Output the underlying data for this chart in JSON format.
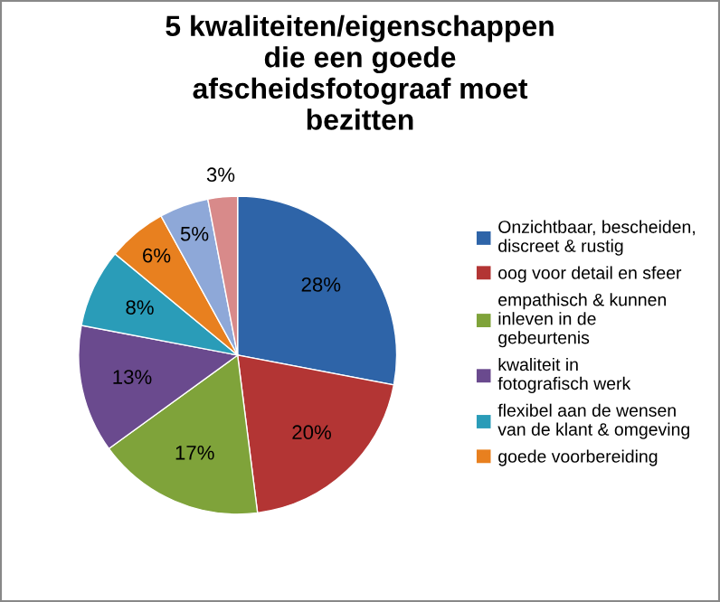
{
  "chart_data": {
    "type": "pie",
    "title": "5 kwaliteiten/eigenschappen die een goede afscheidsfotograaf moet bezitten",
    "categories": [
      "Onzichtbaar, bescheiden, discreet & rustig",
      "oog voor detail en sfeer",
      "empathisch & kunnen inleven in de gebeurtenis",
      "kwaliteit in fotografisch werk",
      "flexibel aan de wensen van de klant & omgeving",
      "goede voorbereiding",
      null,
      null
    ],
    "values": [
      28,
      20,
      17,
      13,
      8,
      6,
      5,
      3
    ],
    "value_labels": [
      "28%",
      "20%",
      "17%",
      "13%",
      "8%",
      "6%",
      "5%",
      "3%"
    ],
    "colors": [
      "#2e64a8",
      "#b33534",
      "#7fa33a",
      "#6a4a8e",
      "#2a9cb8",
      "#e8801f",
      "#8ea8d8",
      "#d88a8a"
    ],
    "legend": "right"
  }
}
